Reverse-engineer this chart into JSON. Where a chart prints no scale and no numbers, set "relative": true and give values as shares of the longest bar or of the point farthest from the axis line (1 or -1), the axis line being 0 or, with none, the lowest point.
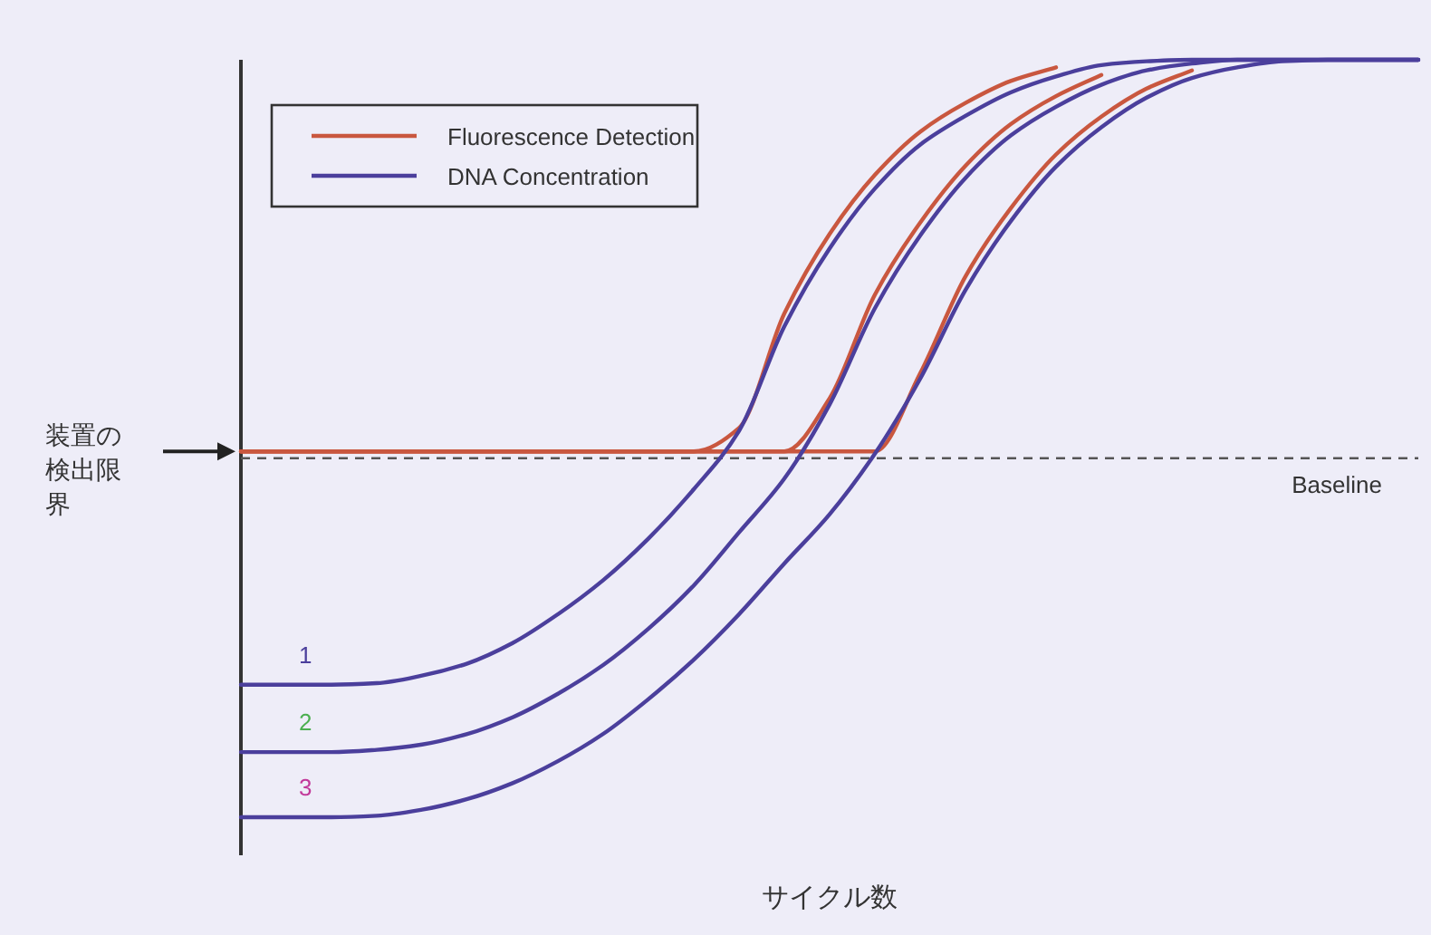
{
  "chart_data": {
    "type": "line",
    "relative": true,
    "xlabel": "サイクル数",
    "legend": "top left",
    "grid": false,
    "marker": "none",
    "line_style": "solid",
    "categories": [
      null,
      null,
      null,
      null,
      null,
      null,
      null,
      null,
      null,
      null,
      null,
      null,
      null,
      null,
      null,
      null,
      null,
      null,
      null,
      null,
      null,
      null,
      null,
      null,
      null,
      null,
      null
    ],
    "series": [
      {
        "name": "Fluorescence Detection",
        "color": "#c9573f",
        "values": [
          0.483,
          0.483,
          0.483,
          0.483,
          0.483,
          0.483,
          0.483,
          0.483,
          0.483,
          0.483,
          0.483,
          0.514,
          0.665,
          0.77,
          0.848,
          0.905,
          0.943,
          0.972,
          0.99,
          null,
          null,
          null,
          null,
          null,
          null,
          null,
          null
        ]
      },
      {
        "color": "#c9573f",
        "values": [
          0.483,
          0.483,
          0.483,
          0.483,
          0.483,
          0.483,
          0.483,
          0.483,
          0.483,
          0.483,
          0.483,
          0.483,
          0.483,
          0.553,
          0.69,
          0.785,
          0.86,
          0.915,
          0.952,
          0.98,
          null,
          null,
          null,
          null,
          null,
          null,
          null
        ]
      },
      {
        "color": "#c9573f",
        "values": [
          0.483,
          0.483,
          0.483,
          0.483,
          0.483,
          0.483,
          0.483,
          0.483,
          0.483,
          0.483,
          0.483,
          0.483,
          0.483,
          0.483,
          0.483,
          0.586,
          0.714,
          0.804,
          0.875,
          0.925,
          0.962,
          0.986,
          null,
          null,
          null,
          null,
          null
        ]
      },
      {
        "name": "DNA Concentration",
        "color": "#4b3f9c",
        "values": [
          0.175,
          0.175,
          0.175,
          0.177,
          0.187,
          0.203,
          0.23,
          0.268,
          0.313,
          0.368,
          0.433,
          0.51,
          0.648,
          0.751,
          0.83,
          0.888,
          0.926,
          0.957,
          0.978,
          0.993,
          0.998,
          1,
          1,
          1,
          1,
          1,
          1
        ]
      },
      {
        "color": "#4b3f9c",
        "values": [
          0.086,
          0.086,
          0.086,
          0.089,
          0.096,
          0.11,
          0.132,
          0.163,
          0.201,
          0.249,
          0.306,
          0.376,
          0.447,
          0.545,
          0.672,
          0.768,
          0.844,
          0.9,
          0.938,
          0.967,
          0.986,
          0.995,
          1,
          1,
          1,
          1,
          1
        ]
      },
      {
        "color": "#4b3f9c",
        "values": [
          0,
          0,
          0,
          0.002,
          0.01,
          0.024,
          0.045,
          0.074,
          0.11,
          0.156,
          0.208,
          0.268,
          0.335,
          0.4,
          0.48,
          0.579,
          0.696,
          0.787,
          0.859,
          0.911,
          0.95,
          0.976,
          0.99,
          0.998,
          1,
          1,
          1
        ]
      }
    ],
    "ref_lines": [
      {
        "axis": "y",
        "value": 0.474,
        "label": "Baseline",
        "color": "#555555",
        "line_style": "dashed"
      }
    ],
    "annotations": [
      "装置の検出限界",
      {
        "text": "1",
        "y": 0.175
      },
      {
        "text": "2",
        "y": 0.086
      },
      {
        "text": "3",
        "y": 0
      }
    ]
  }
}
